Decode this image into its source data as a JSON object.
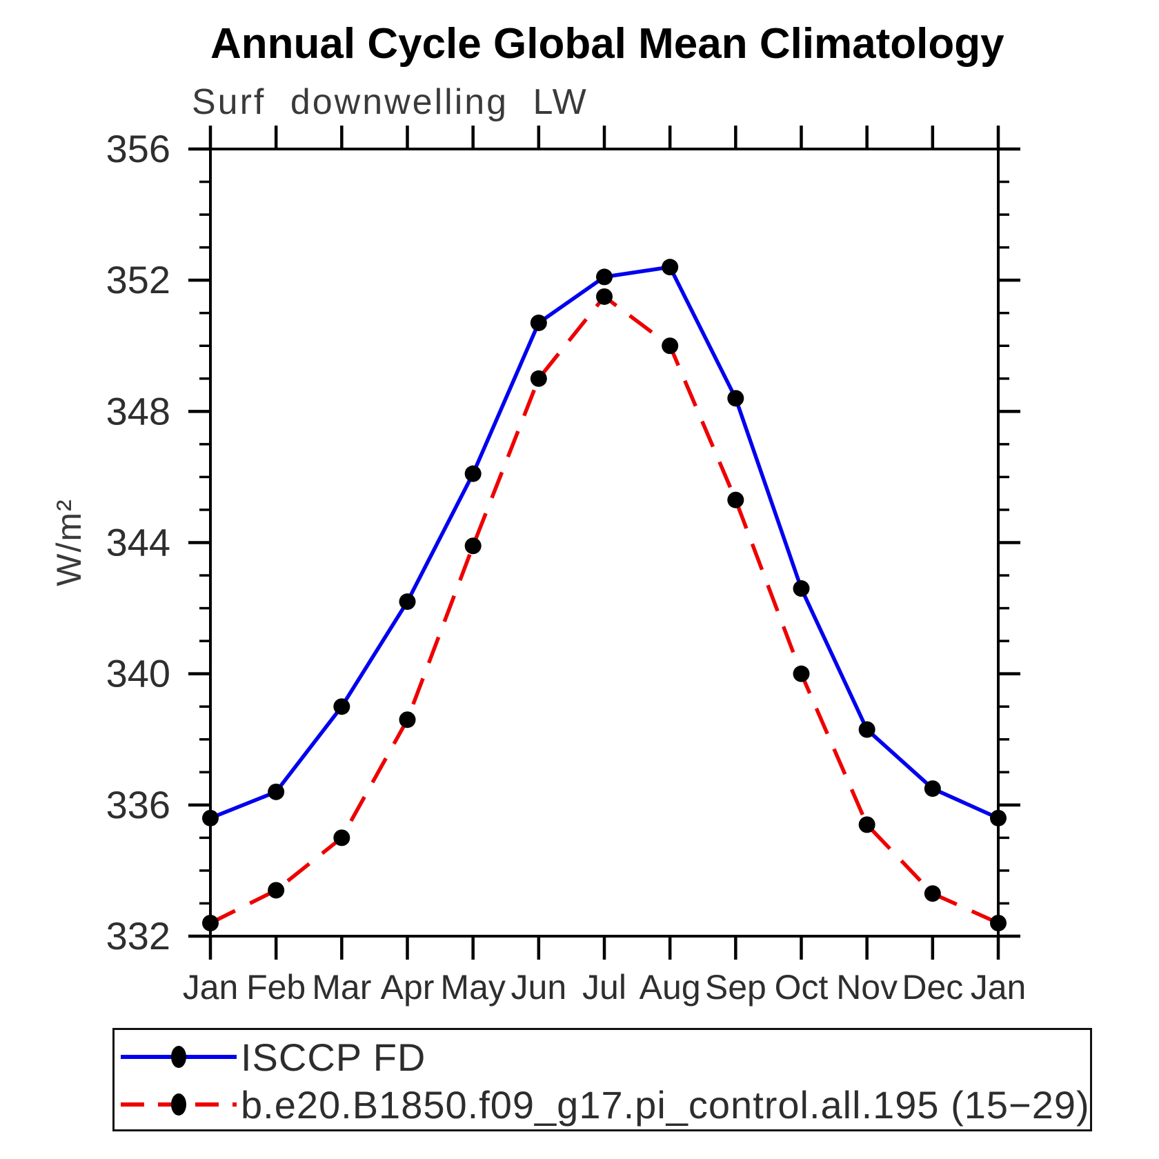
{
  "page": {
    "background": "#ffffff"
  },
  "chart_data": {
    "type": "line",
    "title": "Annual Cycle Global Mean Climatology",
    "subtitle": "Surf downwelling LW",
    "ylabel": "W/m²",
    "categories": [
      "Jan",
      "Feb",
      "Mar",
      "Apr",
      "May",
      "Jun",
      "Jul",
      "Aug",
      "Sep",
      "Oct",
      "Nov",
      "Dec",
      "Jan"
    ],
    "ylim": [
      332,
      356
    ],
    "ytick_major_step": 4,
    "ytick_minor_step": 1,
    "grid": false,
    "legend_position": "bottom-left-box",
    "axis_color": "#000000",
    "tick_label_color": "#2e2e2e",
    "marker_color": "#000000",
    "series": [
      {
        "name": "ISCCP FD",
        "color": "#0000ee",
        "style": "solid",
        "marker": "circle",
        "values": [
          335.6,
          336.4,
          339.0,
          342.2,
          346.1,
          350.7,
          352.1,
          352.4,
          348.4,
          342.6,
          338.3,
          336.5,
          335.6
        ]
      },
      {
        "name": "b.e20.B1850.f09_g17.pi_control.all.195 (15−29)",
        "color": "#ee0000",
        "style": "dashed",
        "marker": "circle",
        "values": [
          332.4,
          333.4,
          335.0,
          338.6,
          343.9,
          349.0,
          351.5,
          350.0,
          345.3,
          340.0,
          335.4,
          333.3,
          332.4
        ]
      }
    ]
  }
}
